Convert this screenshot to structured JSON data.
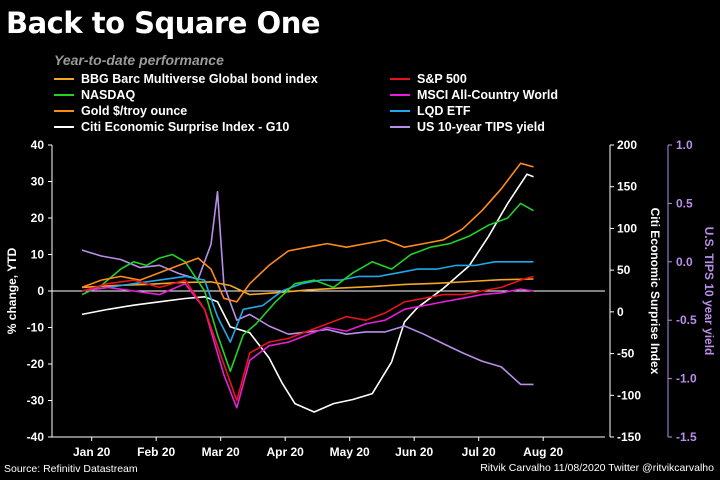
{
  "title": "Back to Square One",
  "subtitle": "Year-to-date performance",
  "source": "Source: Refinitiv Datastream",
  "credit": "Ritvik Carvalho 11/08/2020 Twitter @ritvikcarvalho",
  "chart_data": {
    "type": "line",
    "ylabel_left": "% change, YTD",
    "ylabel_right1": "Citi Economic Surprise Index",
    "ylabel_right2": "U.S. TIPS 10 year yield",
    "ylim_left": [
      -40,
      40
    ],
    "ylim_right1": [
      -150,
      200
    ],
    "ylim_right2": [
      -1.5,
      1.0
    ],
    "left_ticks": [
      "40",
      "30",
      "20",
      "10",
      "0",
      "-10",
      "-20",
      "-30",
      "-40"
    ],
    "right1_ticks": [
      "200",
      "150",
      "100",
      "50",
      "0",
      "-50",
      "-100",
      "-150"
    ],
    "right2_ticks": [
      "1.0",
      "0.5",
      "0.0",
      "-0.5",
      "-1.0",
      "-1.5"
    ],
    "x_ticks": [
      "Jan 20",
      "Feb 20",
      "Mar 20",
      "Apr 20",
      "May 20",
      "Jun 20",
      "Jul 20",
      "Aug 20"
    ],
    "legend_placement": "top",
    "grid": false,
    "series": [
      {
        "name": "BBG Barc Multiverse Global bond index",
        "color": "#f5a623",
        "axis": "left",
        "points": [
          [
            0,
            1
          ],
          [
            0.5,
            1.5
          ],
          [
            1,
            1.8
          ],
          [
            1.5,
            2.3
          ],
          [
            2,
            2.5
          ],
          [
            2.3,
            1.5
          ],
          [
            2.6,
            -1
          ],
          [
            3,
            -0.5
          ],
          [
            3.5,
            0.3
          ],
          [
            4,
            0.8
          ],
          [
            4.5,
            1.2
          ],
          [
            5,
            1.8
          ],
          [
            5.5,
            2.1
          ],
          [
            6,
            2.6
          ],
          [
            6.5,
            3.1
          ],
          [
            7,
            3.3
          ]
        ]
      },
      {
        "name": "NASDAQ",
        "color": "#22d12a",
        "axis": "left",
        "points": [
          [
            0,
            -1
          ],
          [
            0.3,
            1.5
          ],
          [
            0.6,
            6
          ],
          [
            0.8,
            8
          ],
          [
            1,
            7
          ],
          [
            1.2,
            9
          ],
          [
            1.4,
            10
          ],
          [
            1.6,
            8
          ],
          [
            1.9,
            0
          ],
          [
            2.1,
            -12
          ],
          [
            2.3,
            -22
          ],
          [
            2.5,
            -12
          ],
          [
            2.7,
            -9
          ],
          [
            3,
            -3
          ],
          [
            3.3,
            2
          ],
          [
            3.6,
            3
          ],
          [
            3.9,
            1
          ],
          [
            4.2,
            5
          ],
          [
            4.5,
            8
          ],
          [
            4.8,
            6
          ],
          [
            5.1,
            10
          ],
          [
            5.4,
            12
          ],
          [
            5.7,
            13
          ],
          [
            6,
            15
          ],
          [
            6.3,
            18
          ],
          [
            6.6,
            20
          ],
          [
            6.8,
            24
          ],
          [
            7,
            22
          ]
        ]
      },
      {
        "name": "Gold $/troy ounce",
        "color": "#ff8c1a",
        "axis": "left",
        "points": [
          [
            0,
            1
          ],
          [
            0.3,
            3
          ],
          [
            0.6,
            4
          ],
          [
            0.9,
            3
          ],
          [
            1.2,
            5
          ],
          [
            1.5,
            7
          ],
          [
            1.8,
            9
          ],
          [
            2,
            6
          ],
          [
            2.2,
            -2
          ],
          [
            2.4,
            -3
          ],
          [
            2.6,
            2
          ],
          [
            2.9,
            7
          ],
          [
            3.2,
            11
          ],
          [
            3.5,
            12
          ],
          [
            3.8,
            13
          ],
          [
            4.1,
            12
          ],
          [
            4.4,
            13
          ],
          [
            4.7,
            14
          ],
          [
            5,
            12
          ],
          [
            5.3,
            13
          ],
          [
            5.6,
            14
          ],
          [
            5.9,
            17
          ],
          [
            6.2,
            22
          ],
          [
            6.5,
            28
          ],
          [
            6.8,
            35
          ],
          [
            7,
            34
          ]
        ]
      },
      {
        "name": "Citi Economic Surprise Index - G10",
        "color": "#ffffff",
        "axis": "right1",
        "points": [
          [
            0,
            -3
          ],
          [
            0.4,
            3
          ],
          [
            0.8,
            8
          ],
          [
            1.2,
            12
          ],
          [
            1.6,
            16
          ],
          [
            1.9,
            18
          ],
          [
            2.1,
            12
          ],
          [
            2.3,
            -18
          ],
          [
            2.6,
            -25
          ],
          [
            2.9,
            -55
          ],
          [
            3.1,
            -85
          ],
          [
            3.3,
            -110
          ],
          [
            3.6,
            -120
          ],
          [
            3.9,
            -110
          ],
          [
            4.2,
            -105
          ],
          [
            4.5,
            -98
          ],
          [
            4.8,
            -60
          ],
          [
            5,
            -12
          ],
          [
            5.2,
            5
          ],
          [
            5.6,
            28
          ],
          [
            6,
            55
          ],
          [
            6.3,
            90
          ],
          [
            6.6,
            130
          ],
          [
            6.9,
            165
          ],
          [
            7,
            162
          ]
        ]
      },
      {
        "name": "S&P 500",
        "color": "#e8141c",
        "axis": "left",
        "points": [
          [
            0,
            0
          ],
          [
            0.4,
            2
          ],
          [
            0.8,
            3
          ],
          [
            1.2,
            1
          ],
          [
            1.6,
            3
          ],
          [
            1.9,
            -5
          ],
          [
            2.2,
            -20
          ],
          [
            2.4,
            -30
          ],
          [
            2.6,
            -17
          ],
          [
            2.9,
            -14
          ],
          [
            3.2,
            -13
          ],
          [
            3.5,
            -11
          ],
          [
            3.8,
            -9
          ],
          [
            4.1,
            -7
          ],
          [
            4.4,
            -8
          ],
          [
            4.7,
            -6
          ],
          [
            5,
            -3
          ],
          [
            5.3,
            -2
          ],
          [
            5.6,
            -1
          ],
          [
            5.9,
            -1
          ],
          [
            6.2,
            0
          ],
          [
            6.5,
            1
          ],
          [
            6.8,
            3
          ],
          [
            7,
            4
          ]
        ]
      },
      {
        "name": "MSCI All-Country World",
        "color": "#e81fd6",
        "axis": "left",
        "points": [
          [
            0,
            0
          ],
          [
            0.4,
            1
          ],
          [
            0.8,
            0
          ],
          [
            1.2,
            -1
          ],
          [
            1.6,
            2
          ],
          [
            1.9,
            -5
          ],
          [
            2.2,
            -23
          ],
          [
            2.4,
            -32
          ],
          [
            2.6,
            -19
          ],
          [
            2.9,
            -15
          ],
          [
            3.2,
            -14
          ],
          [
            3.5,
            -12
          ],
          [
            3.8,
            -10
          ],
          [
            4.1,
            -11
          ],
          [
            4.4,
            -9
          ],
          [
            4.7,
            -8
          ],
          [
            5,
            -5
          ],
          [
            5.3,
            -4
          ],
          [
            5.6,
            -3
          ],
          [
            5.9,
            -2
          ],
          [
            6.2,
            -1
          ],
          [
            6.5,
            -0.5
          ],
          [
            6.8,
            0.5
          ],
          [
            7,
            0
          ]
        ]
      },
      {
        "name": "LQD ETF",
        "color": "#1ea9e8",
        "axis": "left",
        "points": [
          [
            0,
            0
          ],
          [
            0.4,
            1
          ],
          [
            0.8,
            2
          ],
          [
            1.2,
            3
          ],
          [
            1.6,
            4
          ],
          [
            1.9,
            3
          ],
          [
            2.1,
            -7
          ],
          [
            2.3,
            -14
          ],
          [
            2.5,
            -5
          ],
          [
            2.8,
            -4
          ],
          [
            3.1,
            0
          ],
          [
            3.4,
            2
          ],
          [
            3.7,
            3
          ],
          [
            4,
            3
          ],
          [
            4.3,
            4
          ],
          [
            4.6,
            4
          ],
          [
            4.9,
            5
          ],
          [
            5.2,
            6
          ],
          [
            5.5,
            6
          ],
          [
            5.8,
            7
          ],
          [
            6.1,
            7
          ],
          [
            6.4,
            8
          ],
          [
            6.7,
            8
          ],
          [
            7,
            8
          ]
        ]
      },
      {
        "name": "US 10-year TIPS yield",
        "color": "#b98ee8",
        "axis": "right2",
        "points": [
          [
            0,
            0.1
          ],
          [
            0.3,
            0.05
          ],
          [
            0.6,
            0.02
          ],
          [
            0.9,
            -0.05
          ],
          [
            1.2,
            -0.03
          ],
          [
            1.5,
            -0.1
          ],
          [
            1.8,
            -0.15
          ],
          [
            2,
            0.15
          ],
          [
            2.1,
            0.6
          ],
          [
            2.2,
            -0.2
          ],
          [
            2.4,
            -0.5
          ],
          [
            2.6,
            -0.45
          ],
          [
            2.9,
            -0.55
          ],
          [
            3.2,
            -0.62
          ],
          [
            3.5,
            -0.6
          ],
          [
            3.8,
            -0.58
          ],
          [
            4.1,
            -0.62
          ],
          [
            4.4,
            -0.6
          ],
          [
            4.7,
            -0.6
          ],
          [
            5,
            -0.55
          ],
          [
            5.3,
            -0.62
          ],
          [
            5.6,
            -0.7
          ],
          [
            5.9,
            -0.78
          ],
          [
            6.2,
            -0.85
          ],
          [
            6.5,
            -0.9
          ],
          [
            6.8,
            -1.05
          ],
          [
            7,
            -1.05
          ]
        ]
      }
    ]
  }
}
